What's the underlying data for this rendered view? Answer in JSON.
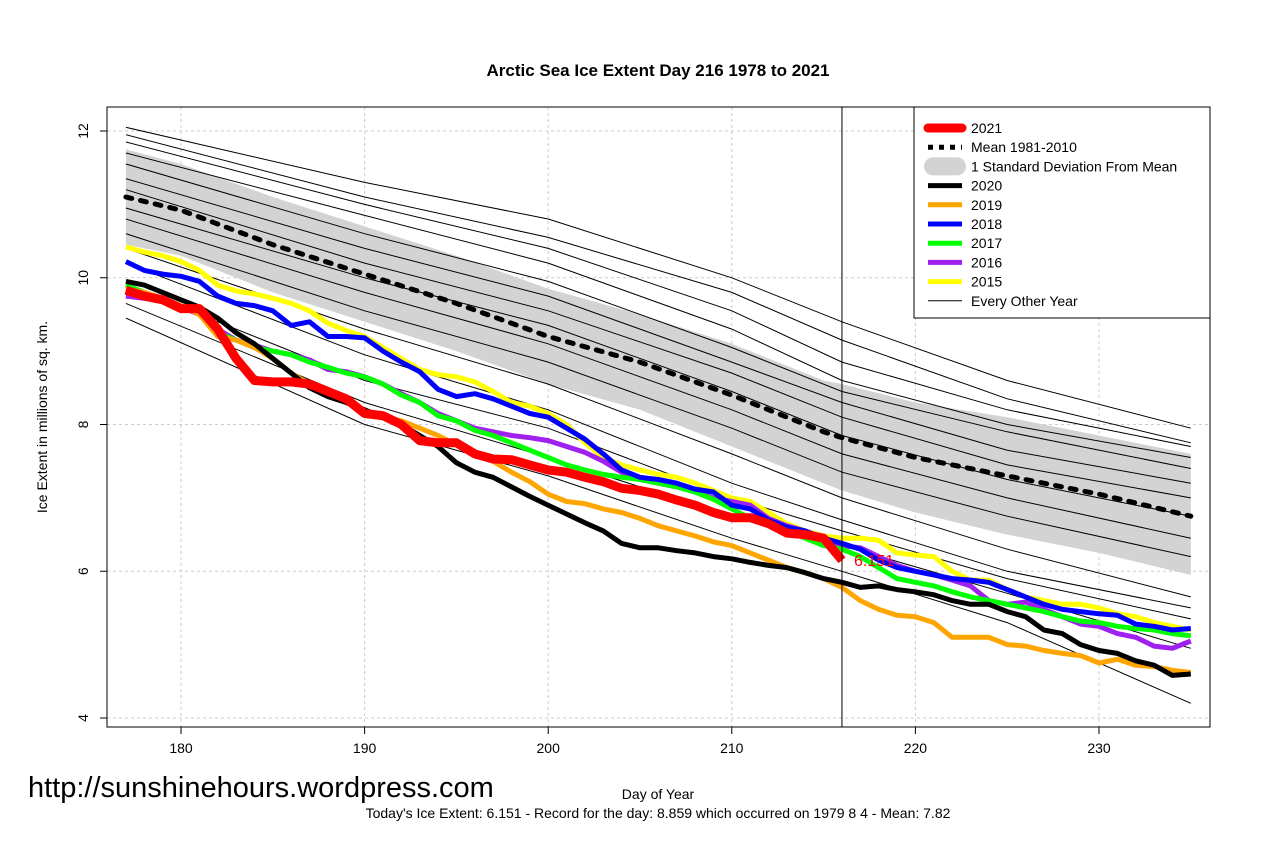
{
  "chart_data": {
    "type": "line",
    "title": "Arctic Sea Ice Extent Day 216 1978 to 2021",
    "xlabel": "Day of Year",
    "ylabel": "Ice Extent in millions of sq. km.",
    "xlim": [
      177,
      235
    ],
    "ylim": [
      4,
      12
    ],
    "xticks": [
      180,
      190,
      200,
      210,
      220,
      230
    ],
    "yticks": [
      4,
      6,
      8,
      10,
      12
    ],
    "grid": true,
    "legend_position": "top-right",
    "current_day": 216,
    "current_value_label": "6.151",
    "x_start": 177,
    "mean": {
      "name": "Mean 1981-2010",
      "days": [
        177,
        180,
        185,
        190,
        195,
        200,
        205,
        210,
        215,
        216,
        220,
        225,
        230,
        235
      ],
      "values": [
        11.1,
        10.92,
        10.45,
        10.05,
        9.65,
        9.2,
        8.85,
        8.4,
        7.9,
        7.82,
        7.55,
        7.3,
        7.05,
        6.75
      ]
    },
    "sd_band": {
      "name": "1 Standard Deviation From Mean",
      "days": [
        177,
        180,
        185,
        190,
        195,
        200,
        205,
        210,
        215,
        216,
        220,
        225,
        230,
        235
      ],
      "upper": [
        11.75,
        11.55,
        11.1,
        10.7,
        10.3,
        9.85,
        9.5,
        9.1,
        8.6,
        8.55,
        8.3,
        8.1,
        7.85,
        7.6
      ],
      "lower": [
        10.45,
        10.3,
        9.8,
        9.4,
        9.0,
        8.55,
        8.2,
        7.7,
        7.2,
        7.1,
        6.8,
        6.5,
        6.25,
        5.95
      ]
    },
    "series": [
      {
        "name": "2021",
        "color": "#ff0000",
        "width": 9,
        "values": [
          9.83,
          9.75,
          9.7,
          9.58,
          9.58,
          9.3,
          8.9,
          8.6,
          8.58,
          8.58,
          8.55,
          8.45,
          8.35,
          8.15,
          8.12,
          8.0,
          7.78,
          7.75,
          7.75,
          7.6,
          7.53,
          7.52,
          7.45,
          7.38,
          7.35,
          7.28,
          7.22,
          7.13,
          7.1,
          7.05,
          6.97,
          6.9,
          6.8,
          6.73,
          6.73,
          6.65,
          6.52,
          6.5,
          6.45,
          6.151
        ]
      },
      {
        "name": "2020",
        "color": "#000000",
        "width": 5,
        "values": [
          9.95,
          9.9,
          9.8,
          9.7,
          9.6,
          9.45,
          9.25,
          9.1,
          8.9,
          8.7,
          8.5,
          8.38,
          8.3,
          8.2,
          8.1,
          8.0,
          7.85,
          7.7,
          7.48,
          7.35,
          7.28,
          7.15,
          7.02,
          6.9,
          6.78,
          6.66,
          6.55,
          6.38,
          6.32,
          6.32,
          6.28,
          6.25,
          6.2,
          6.17,
          6.12,
          6.08,
          6.05,
          5.98,
          5.9,
          5.85,
          5.78,
          5.8,
          5.75,
          5.72,
          5.68,
          5.6,
          5.55,
          5.55,
          5.45,
          5.38,
          5.2,
          5.15,
          5.0,
          4.92,
          4.88,
          4.78,
          4.72,
          4.58,
          4.6
        ]
      },
      {
        "name": "2019",
        "color": "#ffa500",
        "width": 5,
        "values": [
          9.85,
          9.8,
          9.72,
          9.62,
          9.5,
          9.2,
          9.15,
          9.05,
          8.9,
          8.7,
          8.55,
          8.4,
          8.3,
          8.2,
          8.1,
          8.05,
          7.95,
          7.85,
          7.72,
          7.6,
          7.5,
          7.35,
          7.22,
          7.05,
          6.95,
          6.92,
          6.85,
          6.8,
          6.72,
          6.62,
          6.55,
          6.48,
          6.4,
          6.35,
          6.25,
          6.15,
          6.05,
          5.98,
          5.9,
          5.78,
          5.6,
          5.48,
          5.4,
          5.38,
          5.3,
          5.1,
          5.1,
          5.1,
          5.0,
          4.98,
          4.92,
          4.88,
          4.85,
          4.75,
          4.8,
          4.72,
          4.7,
          4.65,
          4.62
        ]
      },
      {
        "name": "2018",
        "color": "#0000ff",
        "width": 5,
        "values": [
          10.22,
          10.1,
          10.05,
          10.02,
          9.95,
          9.75,
          9.65,
          9.62,
          9.55,
          9.35,
          9.4,
          9.2,
          9.2,
          9.18,
          9.0,
          8.85,
          8.72,
          8.48,
          8.38,
          8.42,
          8.35,
          8.25,
          8.15,
          8.1,
          7.95,
          7.8,
          7.6,
          7.38,
          7.28,
          7.25,
          7.2,
          7.12,
          7.08,
          6.9,
          6.85,
          6.7,
          6.6,
          6.55,
          6.45,
          6.38,
          6.3,
          6.15,
          6.05,
          6.0,
          5.95,
          5.9,
          5.88,
          5.85,
          5.75,
          5.65,
          5.55,
          5.48,
          5.45,
          5.42,
          5.4,
          5.28,
          5.25,
          5.2,
          5.22
        ]
      },
      {
        "name": "2017",
        "color": "#00ff00",
        "width": 5,
        "values": [
          9.9,
          9.8,
          9.7,
          9.6,
          9.55,
          9.25,
          9.15,
          9.05,
          9.0,
          8.95,
          8.85,
          8.78,
          8.7,
          8.65,
          8.55,
          8.4,
          8.3,
          8.12,
          8.05,
          7.92,
          7.85,
          7.75,
          7.65,
          7.55,
          7.45,
          7.38,
          7.32,
          7.28,
          7.25,
          7.2,
          7.15,
          7.08,
          6.98,
          6.85,
          6.72,
          6.65,
          6.55,
          6.45,
          6.35,
          6.3,
          6.2,
          6.05,
          5.9,
          5.85,
          5.8,
          5.72,
          5.65,
          5.6,
          5.55,
          5.5,
          5.45,
          5.38,
          5.32,
          5.3,
          5.25,
          5.22,
          5.2,
          5.15,
          5.12
        ]
      },
      {
        "name": "2016",
        "color": "#a020f0",
        "width": 5,
        "values": [
          9.75,
          9.72,
          9.68,
          9.6,
          9.5,
          9.3,
          9.15,
          9.08,
          9.0,
          8.95,
          8.88,
          8.75,
          8.72,
          8.65,
          8.55,
          8.42,
          8.3,
          8.15,
          8.05,
          7.95,
          7.9,
          7.85,
          7.82,
          7.78,
          7.7,
          7.62,
          7.5,
          7.35,
          7.25,
          7.2,
          7.15,
          7.08,
          7.0,
          6.95,
          6.9,
          6.72,
          6.62,
          6.55,
          6.45,
          6.35,
          6.32,
          6.2,
          6.08,
          6.0,
          5.95,
          5.88,
          5.8,
          5.6,
          5.55,
          5.58,
          5.48,
          5.38,
          5.28,
          5.25,
          5.15,
          5.1,
          4.98,
          4.95,
          5.05
        ]
      },
      {
        "name": "2015",
        "color": "#ffff00",
        "width": 5,
        "values": [
          10.42,
          10.35,
          10.3,
          10.22,
          10.1,
          9.9,
          9.82,
          9.78,
          9.72,
          9.65,
          9.55,
          9.38,
          9.28,
          9.2,
          9.05,
          8.9,
          8.75,
          8.68,
          8.65,
          8.58,
          8.45,
          8.3,
          8.25,
          8.15,
          8.0,
          7.75,
          7.55,
          7.45,
          7.38,
          7.32,
          7.28,
          7.2,
          7.1,
          7.0,
          6.95,
          6.8,
          6.65,
          6.55,
          6.48,
          6.45,
          6.45,
          6.42,
          6.25,
          6.22,
          6.2,
          6.0,
          5.88,
          5.88,
          5.75,
          5.65,
          5.6,
          5.55,
          5.55,
          5.5,
          5.42,
          5.38,
          5.3,
          5.25,
          5.2
        ]
      }
    ],
    "other_years": {
      "name": "Every Other Year",
      "days": [
        177,
        190,
        200,
        210,
        216,
        225,
        235
      ],
      "lines": [
        [
          12.05,
          11.3,
          10.8,
          10.0,
          9.4,
          8.6,
          7.95
        ],
        [
          11.95,
          11.1,
          10.55,
          9.8,
          9.15,
          8.35,
          7.75
        ],
        [
          11.85,
          11.0,
          10.4,
          9.55,
          8.85,
          8.2,
          7.7
        ],
        [
          11.7,
          10.85,
          10.2,
          9.3,
          8.6,
          8.0,
          7.55
        ],
        [
          11.55,
          10.6,
          9.95,
          9.05,
          8.45,
          7.9,
          7.4
        ],
        [
          11.35,
          10.4,
          9.75,
          8.85,
          8.3,
          7.65,
          7.2
        ],
        [
          11.2,
          10.2,
          9.55,
          8.7,
          8.1,
          7.45,
          7.0
        ],
        [
          10.95,
          10.0,
          9.35,
          8.45,
          7.85,
          7.25,
          6.75
        ],
        [
          10.8,
          9.8,
          9.1,
          8.2,
          7.6,
          7.0,
          6.45
        ],
        [
          10.6,
          9.55,
          8.85,
          7.95,
          7.35,
          6.75,
          6.2
        ],
        [
          10.4,
          9.3,
          8.55,
          7.6,
          7.0,
          6.3,
          5.65
        ],
        [
          10.2,
          8.95,
          8.2,
          7.2,
          6.7,
          6.0,
          5.5
        ],
        [
          9.9,
          8.6,
          7.95,
          7.0,
          6.55,
          5.9,
          5.35
        ],
        [
          9.65,
          8.3,
          7.55,
          6.75,
          6.35,
          5.7,
          4.95
        ],
        [
          9.45,
          8.0,
          7.3,
          6.45,
          6.0,
          5.3,
          4.2
        ]
      ]
    },
    "legend": [
      {
        "label": "2021",
        "color": "#ff0000",
        "style": "thick"
      },
      {
        "label": "Mean 1981-2010",
        "color": "#000000",
        "style": "dotted"
      },
      {
        "label": "1 Standard Deviation From Mean",
        "color": "#d3d3d3",
        "style": "band"
      },
      {
        "label": "2020",
        "color": "#000000",
        "style": "line"
      },
      {
        "label": "2019",
        "color": "#ffa500",
        "style": "line"
      },
      {
        "label": "2018",
        "color": "#0000ff",
        "style": "line"
      },
      {
        "label": "2017",
        "color": "#00ff00",
        "style": "line"
      },
      {
        "label": "2016",
        "color": "#a020f0",
        "style": "line"
      },
      {
        "label": "2015",
        "color": "#ffff00",
        "style": "line"
      },
      {
        "label": "Every Other Year",
        "color": "#000000",
        "style": "thin"
      }
    ]
  },
  "footer": {
    "url": "http://sunshinehours.wordpress.com",
    "summary": "Today's Ice Extent: 6.151  - Record for the day: 8.859 which occurred on 1979 8 4  - Mean: 7.82"
  }
}
